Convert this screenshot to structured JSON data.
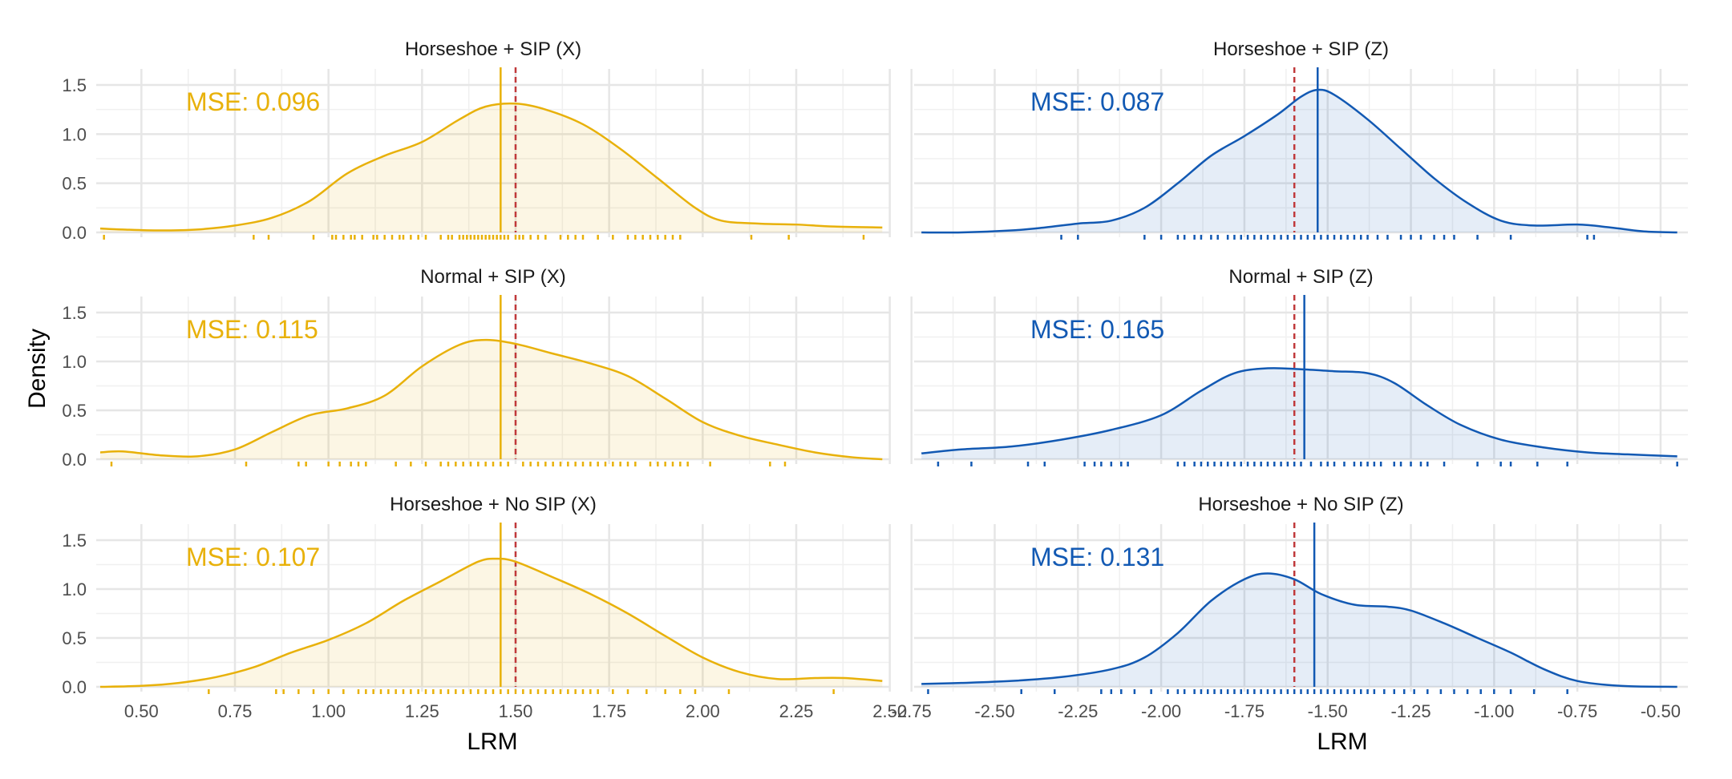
{
  "colors": {
    "x_series": "#E8B10A",
    "z_series": "#1259B3",
    "truth_line": "#C0393B",
    "grid": "#e6e6e6"
  },
  "chart_data": {
    "type": "density-facets",
    "ylabel": "Density",
    "ylim": [
      0,
      1.6
    ],
    "yticks": [
      0,
      0.5,
      1,
      1.5
    ],
    "columns": [
      {
        "id": "X",
        "xlabel": "LRM",
        "xlim": [
          0.39,
          2.49
        ],
        "xticks": [
          "0.50",
          "0.75",
          "1.00",
          "1.25",
          "1.50",
          "1.75",
          "2.00",
          "2.25",
          "2.50"
        ],
        "color_key": "x_series"
      },
      {
        "id": "Z",
        "xlabel": "LRM",
        "xlim": [
          -2.73,
          -0.43
        ],
        "xticks": [
          "-2.75",
          "-2.50",
          "-2.25",
          "-2.00",
          "-1.75",
          "-1.50",
          "-1.25",
          "-1.00",
          "-0.75",
          "-0.50"
        ],
        "color_key": "z_series"
      }
    ],
    "panels": [
      {
        "title": "Horseshoe + SIP (X)",
        "col": 0,
        "row": 0,
        "mse": "MSE: 0.096",
        "estimate": 1.46,
        "truth": 1.5,
        "density": [
          [
            0.39,
            0.04
          ],
          [
            0.45,
            0.03
          ],
          [
            0.55,
            0.02
          ],
          [
            0.65,
            0.03
          ],
          [
            0.75,
            0.07
          ],
          [
            0.85,
            0.15
          ],
          [
            0.95,
            0.32
          ],
          [
            1.05,
            0.6
          ],
          [
            1.15,
            0.78
          ],
          [
            1.25,
            0.92
          ],
          [
            1.35,
            1.15
          ],
          [
            1.42,
            1.28
          ],
          [
            1.5,
            1.31
          ],
          [
            1.58,
            1.25
          ],
          [
            1.68,
            1.1
          ],
          [
            1.78,
            0.85
          ],
          [
            1.88,
            0.55
          ],
          [
            1.98,
            0.25
          ],
          [
            2.05,
            0.12
          ],
          [
            2.15,
            0.09
          ],
          [
            2.25,
            0.08
          ],
          [
            2.35,
            0.06
          ],
          [
            2.48,
            0.05
          ]
        ],
        "rug": [
          0.4,
          0.8,
          0.84,
          0.96,
          1.01,
          1.02,
          1.04,
          1.06,
          1.07,
          1.09,
          1.12,
          1.13,
          1.15,
          1.17,
          1.19,
          1.2,
          1.22,
          1.24,
          1.26,
          1.3,
          1.32,
          1.33,
          1.35,
          1.36,
          1.37,
          1.38,
          1.39,
          1.4,
          1.41,
          1.42,
          1.43,
          1.44,
          1.45,
          1.46,
          1.47,
          1.48,
          1.5,
          1.51,
          1.52,
          1.54,
          1.56,
          1.58,
          1.62,
          1.64,
          1.66,
          1.68,
          1.72,
          1.76,
          1.8,
          1.82,
          1.84,
          1.86,
          1.88,
          1.9,
          1.92,
          1.94,
          2.13,
          2.23,
          2.43
        ]
      },
      {
        "title": "Horseshoe + SIP (Z)",
        "col": 1,
        "row": 0,
        "mse": "MSE: 0.087",
        "estimate": -1.53,
        "truth": -1.6,
        "density": [
          [
            -2.72,
            0.0
          ],
          [
            -2.6,
            0.0
          ],
          [
            -2.45,
            0.02
          ],
          [
            -2.35,
            0.05
          ],
          [
            -2.25,
            0.09
          ],
          [
            -2.15,
            0.12
          ],
          [
            -2.05,
            0.25
          ],
          [
            -1.95,
            0.5
          ],
          [
            -1.85,
            0.78
          ],
          [
            -1.75,
            0.98
          ],
          [
            -1.65,
            1.2
          ],
          [
            -1.58,
            1.38
          ],
          [
            -1.53,
            1.45
          ],
          [
            -1.48,
            1.4
          ],
          [
            -1.38,
            1.15
          ],
          [
            -1.28,
            0.85
          ],
          [
            -1.18,
            0.55
          ],
          [
            -1.08,
            0.3
          ],
          [
            -0.98,
            0.12
          ],
          [
            -0.88,
            0.07
          ],
          [
            -0.75,
            0.08
          ],
          [
            -0.65,
            0.05
          ],
          [
            -0.55,
            0.01
          ],
          [
            -0.45,
            0.0
          ]
        ],
        "rug": [
          -2.3,
          -2.25,
          -2.05,
          -2.0,
          -1.95,
          -1.93,
          -1.9,
          -1.88,
          -1.85,
          -1.83,
          -1.8,
          -1.78,
          -1.76,
          -1.74,
          -1.72,
          -1.7,
          -1.68,
          -1.66,
          -1.64,
          -1.62,
          -1.6,
          -1.58,
          -1.56,
          -1.54,
          -1.52,
          -1.5,
          -1.48,
          -1.46,
          -1.44,
          -1.42,
          -1.4,
          -1.38,
          -1.35,
          -1.32,
          -1.28,
          -1.25,
          -1.22,
          -1.18,
          -1.15,
          -1.12,
          -1.05,
          -0.95,
          -0.72,
          -0.7
        ]
      },
      {
        "title": "Normal + SIP (X)",
        "col": 0,
        "row": 1,
        "mse": "MSE: 0.115",
        "estimate": 1.46,
        "truth": 1.5,
        "density": [
          [
            0.39,
            0.07
          ],
          [
            0.45,
            0.08
          ],
          [
            0.55,
            0.04
          ],
          [
            0.65,
            0.03
          ],
          [
            0.75,
            0.1
          ],
          [
            0.85,
            0.28
          ],
          [
            0.95,
            0.45
          ],
          [
            1.05,
            0.52
          ],
          [
            1.15,
            0.65
          ],
          [
            1.25,
            0.95
          ],
          [
            1.35,
            1.17
          ],
          [
            1.42,
            1.22
          ],
          [
            1.5,
            1.18
          ],
          [
            1.6,
            1.08
          ],
          [
            1.7,
            0.98
          ],
          [
            1.8,
            0.85
          ],
          [
            1.9,
            0.62
          ],
          [
            2.0,
            0.38
          ],
          [
            2.1,
            0.24
          ],
          [
            2.2,
            0.15
          ],
          [
            2.3,
            0.07
          ],
          [
            2.4,
            0.02
          ],
          [
            2.48,
            0.0
          ]
        ],
        "rug": [
          0.42,
          0.78,
          0.92,
          0.94,
          1.0,
          1.03,
          1.06,
          1.08,
          1.1,
          1.18,
          1.22,
          1.26,
          1.3,
          1.32,
          1.34,
          1.36,
          1.38,
          1.4,
          1.42,
          1.44,
          1.46,
          1.48,
          1.52,
          1.54,
          1.56,
          1.58,
          1.6,
          1.62,
          1.64,
          1.66,
          1.68,
          1.7,
          1.72,
          1.74,
          1.76,
          1.78,
          1.8,
          1.82,
          1.86,
          1.88,
          1.9,
          1.92,
          1.94,
          1.96,
          2.02,
          2.18,
          2.22
        ]
      },
      {
        "title": "Normal + SIP (Z)",
        "col": 1,
        "row": 1,
        "mse": "MSE: 0.165",
        "estimate": -1.57,
        "truth": -1.6,
        "density": [
          [
            -2.72,
            0.06
          ],
          [
            -2.6,
            0.1
          ],
          [
            -2.45,
            0.13
          ],
          [
            -2.3,
            0.2
          ],
          [
            -2.15,
            0.3
          ],
          [
            -2.0,
            0.45
          ],
          [
            -1.88,
            0.7
          ],
          [
            -1.78,
            0.88
          ],
          [
            -1.68,
            0.93
          ],
          [
            -1.58,
            0.92
          ],
          [
            -1.48,
            0.9
          ],
          [
            -1.38,
            0.88
          ],
          [
            -1.3,
            0.78
          ],
          [
            -1.2,
            0.55
          ],
          [
            -1.1,
            0.35
          ],
          [
            -0.98,
            0.2
          ],
          [
            -0.85,
            0.12
          ],
          [
            -0.72,
            0.07
          ],
          [
            -0.6,
            0.05
          ],
          [
            -0.45,
            0.03
          ]
        ],
        "rug": [
          -2.67,
          -2.57,
          -2.4,
          -2.35,
          -2.23,
          -2.2,
          -2.18,
          -2.15,
          -2.12,
          -2.1,
          -1.95,
          -1.93,
          -1.9,
          -1.88,
          -1.86,
          -1.84,
          -1.82,
          -1.8,
          -1.78,
          -1.76,
          -1.74,
          -1.72,
          -1.7,
          -1.68,
          -1.66,
          -1.64,
          -1.62,
          -1.6,
          -1.58,
          -1.55,
          -1.52,
          -1.5,
          -1.48,
          -1.45,
          -1.42,
          -1.4,
          -1.38,
          -1.36,
          -1.34,
          -1.3,
          -1.28,
          -1.25,
          -1.22,
          -1.2,
          -1.15,
          -1.05,
          -0.98,
          -0.95,
          -0.87,
          -0.78,
          -0.45
        ]
      },
      {
        "title": "Horseshoe + No SIP (X)",
        "col": 0,
        "row": 2,
        "mse": "MSE: 0.107",
        "estimate": 1.46,
        "truth": 1.5,
        "density": [
          [
            0.39,
            0.0
          ],
          [
            0.5,
            0.01
          ],
          [
            0.6,
            0.04
          ],
          [
            0.7,
            0.1
          ],
          [
            0.8,
            0.2
          ],
          [
            0.9,
            0.35
          ],
          [
            1.0,
            0.48
          ],
          [
            1.1,
            0.65
          ],
          [
            1.2,
            0.88
          ],
          [
            1.3,
            1.08
          ],
          [
            1.4,
            1.28
          ],
          [
            1.45,
            1.31
          ],
          [
            1.5,
            1.28
          ],
          [
            1.6,
            1.12
          ],
          [
            1.7,
            0.95
          ],
          [
            1.8,
            0.75
          ],
          [
            1.9,
            0.52
          ],
          [
            2.0,
            0.3
          ],
          [
            2.1,
            0.15
          ],
          [
            2.2,
            0.08
          ],
          [
            2.3,
            0.09
          ],
          [
            2.38,
            0.09
          ],
          [
            2.48,
            0.06
          ]
        ],
        "rug": [
          0.68,
          0.86,
          0.88,
          0.92,
          0.96,
          1.0,
          1.04,
          1.08,
          1.1,
          1.12,
          1.14,
          1.16,
          1.18,
          1.2,
          1.22,
          1.24,
          1.26,
          1.28,
          1.3,
          1.32,
          1.34,
          1.36,
          1.38,
          1.4,
          1.42,
          1.44,
          1.46,
          1.48,
          1.5,
          1.52,
          1.54,
          1.56,
          1.58,
          1.6,
          1.62,
          1.64,
          1.66,
          1.68,
          1.7,
          1.72,
          1.76,
          1.8,
          1.85,
          1.9,
          1.94,
          1.98,
          2.07,
          2.35
        ]
      },
      {
        "title": "Horseshoe + No SIP (Z)",
        "col": 1,
        "row": 2,
        "mse": "MSE: 0.131",
        "estimate": -1.54,
        "truth": -1.6,
        "density": [
          [
            -2.72,
            0.03
          ],
          [
            -2.6,
            0.04
          ],
          [
            -2.45,
            0.06
          ],
          [
            -2.3,
            0.1
          ],
          [
            -2.15,
            0.18
          ],
          [
            -2.05,
            0.3
          ],
          [
            -1.95,
            0.55
          ],
          [
            -1.85,
            0.88
          ],
          [
            -1.75,
            1.1
          ],
          [
            -1.68,
            1.16
          ],
          [
            -1.6,
            1.1
          ],
          [
            -1.52,
            0.95
          ],
          [
            -1.42,
            0.84
          ],
          [
            -1.32,
            0.82
          ],
          [
            -1.25,
            0.78
          ],
          [
            -1.15,
            0.65
          ],
          [
            -1.05,
            0.5
          ],
          [
            -0.95,
            0.35
          ],
          [
            -0.85,
            0.18
          ],
          [
            -0.75,
            0.06
          ],
          [
            -0.62,
            0.01
          ],
          [
            -0.45,
            0.0
          ]
        ],
        "rug": [
          -2.7,
          -2.42,
          -2.32,
          -2.18,
          -2.15,
          -2.12,
          -2.08,
          -2.03,
          -1.98,
          -1.95,
          -1.93,
          -1.9,
          -1.88,
          -1.86,
          -1.84,
          -1.82,
          -1.8,
          -1.78,
          -1.76,
          -1.74,
          -1.72,
          -1.7,
          -1.68,
          -1.66,
          -1.64,
          -1.62,
          -1.6,
          -1.58,
          -1.56,
          -1.54,
          -1.52,
          -1.5,
          -1.48,
          -1.46,
          -1.44,
          -1.42,
          -1.4,
          -1.38,
          -1.36,
          -1.33,
          -1.3,
          -1.27,
          -1.24,
          -1.2,
          -1.16,
          -1.12,
          -1.08,
          -1.04,
          -1.0,
          -0.95,
          -0.88,
          -0.78
        ]
      }
    ]
  }
}
